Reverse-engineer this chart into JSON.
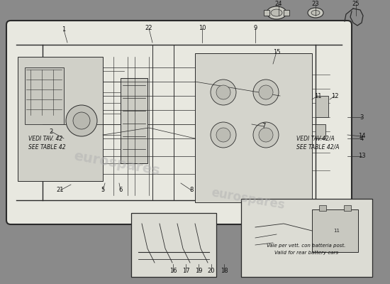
{
  "bg_color": "#8a8a8a",
  "fig_bg": "#7a7a7a",
  "diagram_bg": "#d8d8d0",
  "line_color": "#2a2a2a",
  "label_color": "#111111",
  "label_fontsize": 6.0,
  "annotation_fontsize": 5.5,
  "watermark_color": "#b0b0b0",
  "watermark_alpha": 0.5,
  "fig_width": 5.5,
  "fig_height": 4.0,
  "dpi": 100,
  "note_left": [
    "VEDI TAV. 42",
    "SEE TABLE 42"
  ],
  "note_right": [
    "VEDI TAV.42/A",
    "SEE TABLE 42/A"
  ],
  "inset_note": [
    "Vale per vett. con batteria post.",
    "Valid for rear battery cars"
  ]
}
